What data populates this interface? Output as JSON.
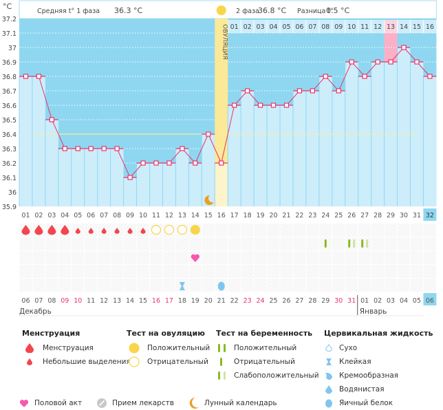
{
  "header": {
    "unit": "°C",
    "phase1_label": "Средняя t° 1 фаза",
    "phase1_value": "36.3 °C",
    "phase2_label": "2 фаза",
    "phase2_value": "36.8 °C",
    "diff_label": "Разница t°",
    "diff_value": "0.5 °C",
    "ovulation_label": "ОВУЛЯЦИЯ"
  },
  "chart_data": {
    "type": "line",
    "title": "Базальная температура",
    "ylabel": "°C",
    "ylim": [
      35.9,
      37.2
    ],
    "yticks": [
      "35.9",
      "36",
      "36.1",
      "36.2",
      "36.3",
      "36.4",
      "36.5",
      "36.6",
      "36.7",
      "36.8",
      "36.9",
      "37",
      "37.1",
      "37.2"
    ],
    "cycle_days": [
      "01",
      "02",
      "03",
      "04",
      "05",
      "06",
      "07",
      "08",
      "09",
      "10",
      "11",
      "12",
      "13",
      "14",
      "15",
      "16",
      "17",
      "18",
      "19",
      "20",
      "21",
      "22",
      "23",
      "24",
      "25",
      "26",
      "27",
      "28",
      "29",
      "30",
      "31",
      "32"
    ],
    "temperatures": [
      36.8,
      36.8,
      36.5,
      36.3,
      36.3,
      36.3,
      36.3,
      36.3,
      36.1,
      36.2,
      36.2,
      36.2,
      36.3,
      36.2,
      36.4,
      36.2,
      36.6,
      36.7,
      36.6,
      36.6,
      36.6,
      36.7,
      36.7,
      36.8,
      36.7,
      36.9,
      36.8,
      36.9,
      36.9,
      37.0,
      36.9,
      36.8
    ],
    "coverline": 36.4,
    "ovulation_day": 16,
    "phase2_day_labels": [
      "01",
      "02",
      "03",
      "04",
      "05",
      "06",
      "07",
      "08",
      "09",
      "10",
      "11",
      "12",
      "13",
      "14",
      "15",
      "16"
    ],
    "highlighted_phase2_day": "13",
    "current_day": "32",
    "dates": [
      "06",
      "07",
      "08",
      "09",
      "10",
      "11",
      "12",
      "13",
      "14",
      "15",
      "16",
      "17",
      "18",
      "19",
      "20",
      "21",
      "22",
      "23",
      "24",
      "25",
      "26",
      "27",
      "28",
      "29",
      "30",
      "31",
      "01",
      "02",
      "03",
      "04",
      "05",
      "06"
    ],
    "weekend_dates_idx": [
      3,
      4,
      10,
      11,
      17,
      18,
      24,
      25
    ],
    "months": [
      {
        "label": "Декабрь",
        "start_index": 0
      },
      {
        "label": "Январь",
        "start_index": 26
      }
    ]
  },
  "markers": {
    "menstruation_heavy_days": [
      1,
      2,
      3,
      4
    ],
    "menstruation_light_days": [
      5,
      6,
      7,
      8,
      9,
      10
    ],
    "ovulation_test_negative_days": [
      11,
      12,
      13
    ],
    "ovulation_test_positive_days": [
      14
    ],
    "pregnancy_tests": [
      {
        "day": 24,
        "result": "negative"
      },
      {
        "day": 26,
        "result": "weak"
      },
      {
        "day": 27,
        "result": "weak"
      }
    ],
    "intercourse_days": [
      14
    ],
    "cervical_fluid": [
      {
        "day": 13,
        "type": "sticky"
      },
      {
        "day": 16,
        "type": "eggwhite"
      }
    ],
    "moon_day": 15
  },
  "legend": {
    "menstruation": {
      "title": "Менструация",
      "items": [
        "Менструация",
        "Небольшие выделения"
      ]
    },
    "ovulation_test": {
      "title": "Тест на овуляцию",
      "items": [
        "Положительный",
        "Отрицательный"
      ]
    },
    "pregnancy_test": {
      "title": "Тест на беременность",
      "items": [
        "Положительный",
        "Отрицательный",
        "Слабоположительный"
      ]
    },
    "cervical_fluid": {
      "title": "Цервикальная жидкость",
      "items": [
        "Сухо",
        "Клейкая",
        "Кремообразная",
        "Водянистая",
        "Яичный белок"
      ]
    },
    "other": [
      "Половой акт",
      "Прием лекарств",
      "Лунный календарь"
    ]
  },
  "colors": {
    "plot_bg": "#8fd7f1",
    "bar": "#cdedfb",
    "line": "#e8336a",
    "ovulation": "#fbe997",
    "highlight": "#fbb0c8",
    "drop": "#f2464f",
    "yellow": "#f9d54a",
    "green": "#8ab925",
    "green_light": "#cfe2a6",
    "cf": "#7fc6ee",
    "heart": "#f558b0",
    "moon": "#ef9d20",
    "weekend": "#e8336a"
  }
}
